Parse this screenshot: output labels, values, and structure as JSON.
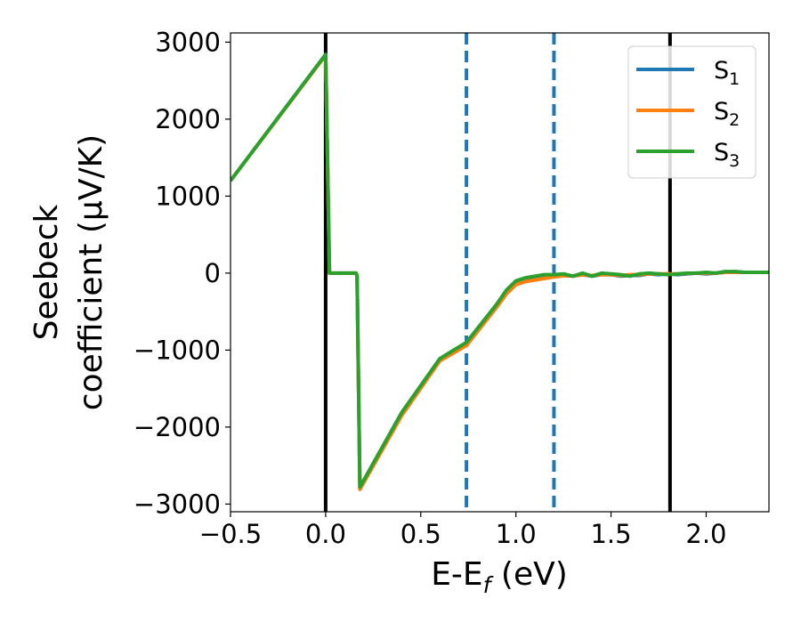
{
  "chart_data": {
    "type": "line",
    "title": "",
    "xlabel": {
      "main": "E-E",
      "sub": "f",
      "tail": " (eV)"
    },
    "ylabel": {
      "line1": "Seebeck",
      "line2": "coefficient  (μV/K)"
    },
    "xlim": [
      -0.5,
      2.33
    ],
    "ylim": [
      -3100,
      3120
    ],
    "xticks": [
      -0.5,
      0.0,
      0.5,
      1.0,
      1.5,
      2.0
    ],
    "xtick_labels": [
      "−0.5",
      "0.0",
      "0.5",
      "1.0",
      "1.5",
      "2.0"
    ],
    "yticks": [
      -3000,
      -2000,
      -1000,
      0,
      1000,
      2000,
      3000
    ],
    "ytick_labels": [
      "−3000",
      "−2000",
      "−1000",
      "0",
      "1000",
      "2000",
      "3000"
    ],
    "grid": false,
    "legend_position": "top-right",
    "vertical_lines": [
      {
        "x": 0.0,
        "style": "solid",
        "color": "#000000"
      },
      {
        "x": 1.81,
        "style": "solid",
        "color": "#000000"
      },
      {
        "x": 0.74,
        "style": "dashed",
        "color": "#1f77b4"
      },
      {
        "x": 1.2,
        "style": "dashed",
        "color": "#1f77b4"
      }
    ],
    "series": [
      {
        "name": "S",
        "sub": "1",
        "color": "#1f77b4",
        "x": [
          -0.5,
          0.0,
          0.02,
          0.16,
          0.165,
          0.18,
          0.4,
          0.6,
          0.74,
          0.9,
          0.95,
          1.0,
          1.05,
          1.1,
          1.15,
          1.2,
          1.25,
          1.3,
          1.35,
          1.4,
          1.45,
          1.5,
          1.55,
          1.6,
          1.65,
          1.7,
          1.75,
          1.8,
          1.85,
          1.9,
          1.95,
          2.0,
          2.05,
          2.1,
          2.15,
          2.2,
          2.25,
          2.33
        ],
        "y": [
          1200,
          2840,
          0,
          0,
          -40,
          -2780,
          -1820,
          -1120,
          -920,
          -420,
          -240,
          -130,
          -90,
          -75,
          -55,
          -40,
          -30,
          -40,
          -20,
          -40,
          -20,
          -20,
          -40,
          -30,
          -30,
          -10,
          -20,
          -10,
          -20,
          -10,
          0,
          -10,
          0,
          10,
          20,
          10,
          10,
          10
        ]
      },
      {
        "name": "S",
        "sub": "2",
        "color": "#ff7f0e",
        "x": [
          -0.5,
          0.0,
          0.02,
          0.16,
          0.165,
          0.18,
          0.4,
          0.6,
          0.74,
          0.9,
          0.95,
          1.0,
          1.05,
          1.1,
          1.15,
          1.2,
          1.25,
          1.3,
          1.35,
          1.4,
          1.45,
          1.5,
          1.55,
          1.6,
          1.65,
          1.7,
          1.75,
          1.8,
          1.85,
          1.9,
          1.95,
          2.0,
          2.05,
          2.1,
          2.15,
          2.2,
          2.25,
          2.33
        ],
        "y": [
          1200,
          2830,
          0,
          0,
          -50,
          -2810,
          -1850,
          -1140,
          -940,
          -440,
          -270,
          -150,
          -110,
          -90,
          -70,
          -50,
          -35,
          -35,
          -25,
          -30,
          -20,
          -20,
          -30,
          -20,
          -20,
          -10,
          -10,
          -10,
          -10,
          -5,
          0,
          0,
          0,
          10,
          10,
          10,
          10,
          10
        ]
      },
      {
        "name": "S",
        "sub": "3",
        "color": "#2ca02c",
        "x": [
          -0.5,
          0.0,
          0.02,
          0.16,
          0.165,
          0.18,
          0.4,
          0.6,
          0.74,
          0.9,
          0.95,
          1.0,
          1.05,
          1.1,
          1.15,
          1.2,
          1.25,
          1.3,
          1.35,
          1.4,
          1.45,
          1.5,
          1.55,
          1.6,
          1.65,
          1.7,
          1.75,
          1.8,
          1.85,
          1.9,
          1.95,
          2.0,
          2.05,
          2.1,
          2.15,
          2.2,
          2.25,
          2.33
        ],
        "y": [
          1200,
          2840,
          0,
          0,
          -30,
          -2780,
          -1810,
          -1110,
          -900,
          -400,
          -220,
          -100,
          -60,
          -40,
          -20,
          -20,
          -10,
          -40,
          0,
          -40,
          0,
          -10,
          -20,
          -40,
          -10,
          0,
          -10,
          -20,
          -10,
          0,
          0,
          10,
          0,
          20,
          20,
          10,
          10,
          10
        ]
      }
    ]
  }
}
